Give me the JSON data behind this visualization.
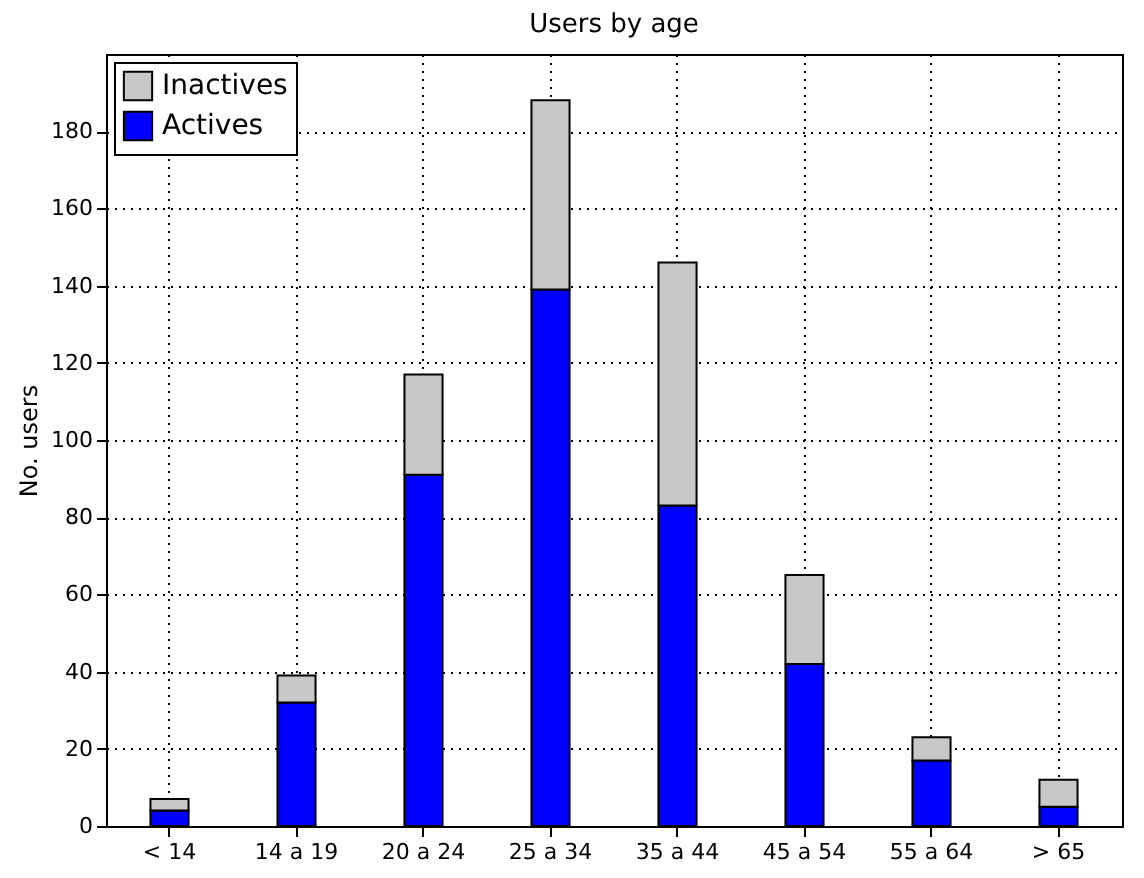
{
  "chart_data": {
    "type": "bar",
    "title": "Users by age",
    "ylabel": "No. users",
    "categories": [
      "< 14",
      "14 a 19",
      "20 a 24",
      "25 a 34",
      "35 a 44",
      "45 a 54",
      "55 a 64",
      "> 65"
    ],
    "stacked": true,
    "series": [
      {
        "name": "Actives",
        "color": "#0000ff",
        "values": [
          4,
          32,
          91,
          139,
          83,
          42,
          17,
          5
        ]
      },
      {
        "name": "Inactives",
        "color": "#c8c8c8",
        "values": [
          3,
          7,
          26,
          49,
          63,
          23,
          6,
          7
        ]
      }
    ],
    "ylim": [
      0,
      200
    ],
    "yticks": [
      0,
      20,
      40,
      60,
      80,
      100,
      120,
      140,
      160,
      180
    ],
    "grid": true,
    "legend": "top left"
  }
}
